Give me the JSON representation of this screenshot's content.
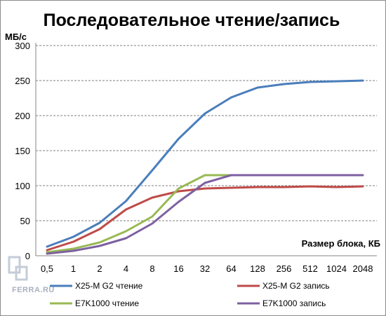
{
  "chart_data": {
    "type": "line",
    "title": "Последовательное чтение/запись",
    "ylabel": "МБ/с",
    "xlabel": "Размер блока, КБ",
    "ylim": [
      0,
      300
    ],
    "yticks": [
      0,
      50,
      100,
      150,
      200,
      250,
      300
    ],
    "grid": "horizontal-dashed",
    "legend_position": "bottom",
    "categories": [
      "0,5",
      "1",
      "2",
      "4",
      "8",
      "16",
      "32",
      "64",
      "128",
      "256",
      "512",
      "1024",
      "2048"
    ],
    "series": [
      {
        "name": "X25-M G2 чтение",
        "color": "#4a7ebb",
        "values": [
          13,
          27,
          47,
          78,
          122,
          167,
          203,
          226,
          240,
          245,
          248,
          249,
          250
        ]
      },
      {
        "name": "X25-M G2 запись",
        "color": "#be4b48",
        "values": [
          8,
          20,
          38,
          66,
          83,
          92,
          96,
          97,
          98,
          98,
          99,
          98,
          99
        ]
      },
      {
        "name": "E7K1000 чтение",
        "color": "#98b954",
        "values": [
          5,
          10,
          19,
          35,
          56,
          96,
          115,
          115,
          null,
          null,
          null,
          null,
          null
        ]
      },
      {
        "name": "E7K1000 запись",
        "color": "#7d60a0",
        "values": [
          3,
          7,
          14,
          25,
          46,
          77,
          104,
          115,
          115,
          115,
          115,
          115,
          115
        ]
      }
    ]
  },
  "watermark": {
    "text": "FERRA.RU"
  }
}
